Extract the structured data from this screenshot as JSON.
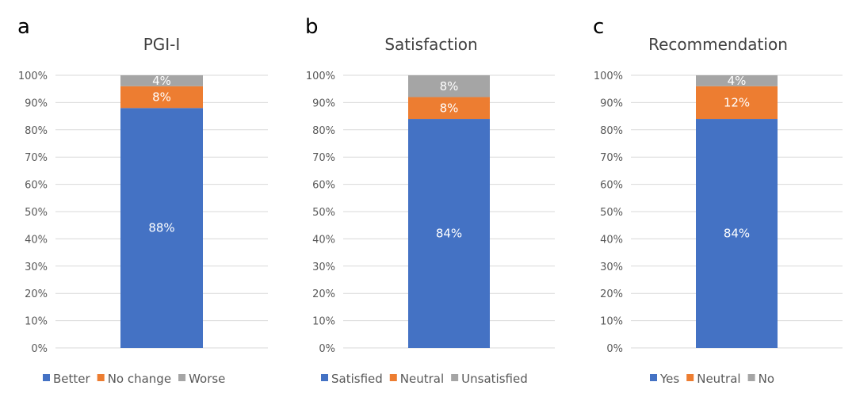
{
  "chart_data": [
    {
      "type": "bar",
      "stacked": true,
      "panel_letter": "a",
      "title": "PGI-I",
      "ylim": [
        0,
        100
      ],
      "y_ticks": [
        "0%",
        "10%",
        "20%",
        "30%",
        "40%",
        "50%",
        "60%",
        "70%",
        "80%",
        "90%",
        "100%"
      ],
      "grid": true,
      "legend_position": "bottom",
      "series": [
        {
          "name": "Better",
          "value": 88,
          "label": "88%",
          "color": "#4472c4"
        },
        {
          "name": "No change",
          "value": 8,
          "label": "8%",
          "color": "#ed7d31"
        },
        {
          "name": "Worse",
          "value": 4,
          "label": "4%",
          "color": "#a5a5a5"
        }
      ]
    },
    {
      "type": "bar",
      "stacked": true,
      "panel_letter": "b",
      "title": "Satisfaction",
      "ylim": [
        0,
        100
      ],
      "y_ticks": [
        "0%",
        "10%",
        "20%",
        "30%",
        "40%",
        "50%",
        "60%",
        "70%",
        "80%",
        "90%",
        "100%"
      ],
      "grid": true,
      "legend_position": "bottom",
      "series": [
        {
          "name": "Satisfied",
          "value": 84,
          "label": "84%",
          "color": "#4472c4"
        },
        {
          "name": "Neutral",
          "value": 8,
          "label": "8%",
          "color": "#ed7d31"
        },
        {
          "name": "Unsatisfied",
          "value": 8,
          "label": "8%",
          "color": "#a5a5a5"
        }
      ]
    },
    {
      "type": "bar",
      "stacked": true,
      "panel_letter": "c",
      "title": "Recommendation",
      "ylim": [
        0,
        100
      ],
      "y_ticks": [
        "0%",
        "10%",
        "20%",
        "30%",
        "40%",
        "50%",
        "60%",
        "70%",
        "80%",
        "90%",
        "100%"
      ],
      "grid": true,
      "legend_position": "bottom",
      "series": [
        {
          "name": "Yes",
          "value": 84,
          "label": "84%",
          "color": "#4472c4"
        },
        {
          "name": "Neutral",
          "value": 12,
          "label": "12%",
          "color": "#ed7d31"
        },
        {
          "name": "No",
          "value": 4,
          "label": "4%",
          "color": "#a5a5a5"
        }
      ]
    }
  ]
}
